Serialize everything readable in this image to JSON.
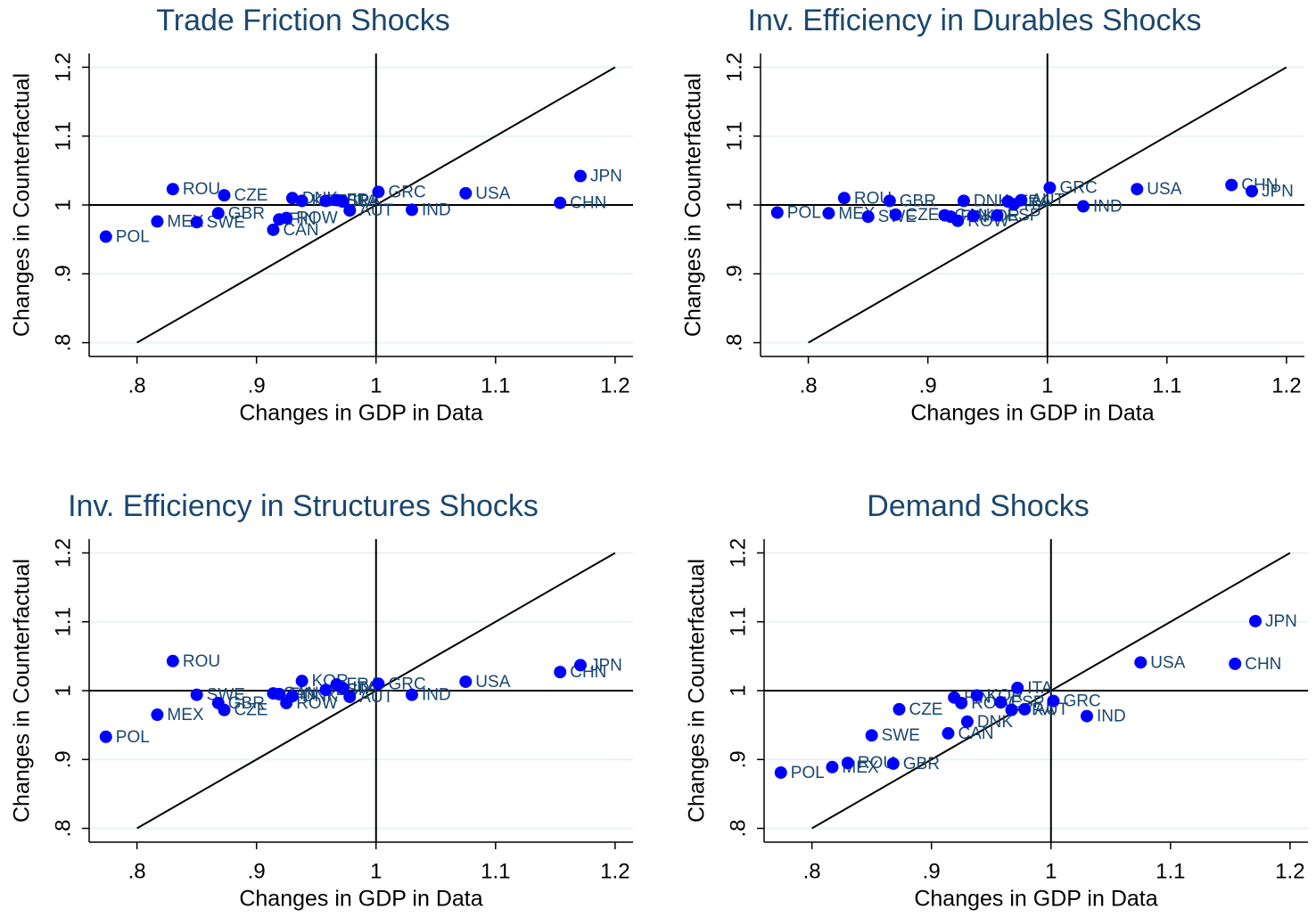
{
  "chart_data": [
    {
      "type": "scatter",
      "title": "Trade Friction Shocks",
      "xlabel": "Changes in GDP in Data",
      "ylabel": "Changes in Counterfactual",
      "point_labels": [
        "POL",
        "MEX",
        "ROU",
        "SWE",
        "GBR",
        "CZE",
        "CAN",
        "FIN",
        "ROW",
        "DNK",
        "KOR",
        "ESP",
        "FRA",
        "ITA",
        "AUT",
        "GRC",
        "IND",
        "USA",
        "CHN",
        "JPN"
      ],
      "x": [
        0.774,
        0.817,
        0.83,
        0.85,
        0.868,
        0.873,
        0.914,
        0.919,
        0.925,
        0.93,
        0.938,
        0.958,
        0.967,
        0.972,
        0.978,
        1.002,
        1.03,
        1.075,
        1.154,
        1.171
      ],
      "values": [
        0.954,
        0.976,
        1.023,
        0.975,
        0.988,
        1.014,
        0.964,
        0.979,
        0.981,
        1.01,
        1.006,
        1.006,
        1.007,
        1.005,
        0.992,
        1.019,
        0.993,
        1.017,
        1.003,
        1.042
      ],
      "color": "#0000ff",
      "hline": 1,
      "vline": 1,
      "diagonal": [
        0.8,
        1.2
      ],
      "xlim": [
        0.76,
        1.215
      ],
      "ylim": [
        0.78,
        1.22
      ],
      "xticks": [
        {
          "value": 0.8,
          "label": ".8"
        },
        {
          "value": 0.9,
          "label": ".9"
        },
        1,
        1.1,
        1.2
      ],
      "yticks": [
        {
          "value": 0.8,
          "label": ".8"
        },
        {
          "value": 0.9,
          "label": ".9"
        },
        1,
        1.1,
        1.2
      ],
      "grid": true
    },
    {
      "type": "scatter",
      "title": "Inv. Efficiency in Durables Shocks",
      "xlabel": "Changes in GDP in Data",
      "ylabel": "Changes in Counterfactual",
      "point_labels": [
        "POL",
        "MEX",
        "ROU",
        "SWE",
        "GBR",
        "CZE",
        "CAN",
        "FIN",
        "ROW",
        "DNK",
        "KOR",
        "ESP",
        "FRA",
        "ITA",
        "AUT",
        "GRC",
        "IND",
        "USA",
        "CHN",
        "JPN"
      ],
      "x": [
        0.774,
        0.817,
        0.83,
        0.85,
        0.868,
        0.873,
        0.914,
        0.919,
        0.925,
        0.93,
        0.938,
        0.958,
        0.967,
        0.972,
        0.978,
        1.002,
        1.03,
        1.075,
        1.154,
        1.171
      ],
      "values": [
        0.989,
        0.988,
        1.01,
        0.983,
        1.006,
        0.986,
        0.985,
        0.983,
        0.977,
        1.006,
        0.984,
        0.985,
        1.005,
        1.001,
        1.007,
        1.025,
        0.998,
        1.023,
        1.029,
        1.02
      ],
      "color": "#0000ff",
      "hline": 1,
      "vline": 1,
      "diagonal": [
        0.8,
        1.2
      ],
      "xlim": [
        0.76,
        1.215
      ],
      "ylim": [
        0.78,
        1.22
      ],
      "xticks": [
        {
          "value": 0.8,
          "label": ".8"
        },
        {
          "value": 0.9,
          "label": ".9"
        },
        1,
        1.1,
        1.2
      ],
      "yticks": [
        {
          "value": 0.8,
          "label": ".8"
        },
        {
          "value": 0.9,
          "label": ".9"
        },
        1,
        1.1,
        1.2
      ],
      "grid": true
    },
    {
      "type": "scatter",
      "title": "Inv. Efficiency in Structures Shocks",
      "xlabel": "Changes in GDP in Data",
      "ylabel": "Changes in Counterfactual",
      "point_labels": [
        "POL",
        "MEX",
        "ROU",
        "SWE",
        "GBR",
        "CZE",
        "CAN",
        "FIN",
        "ROW",
        "DNK",
        "KOR",
        "ESP",
        "FRA",
        "ITA",
        "AUT",
        "GRC",
        "IND",
        "USA",
        "CHN",
        "JPN"
      ],
      "x": [
        0.774,
        0.817,
        0.83,
        0.85,
        0.868,
        0.873,
        0.914,
        0.919,
        0.925,
        0.93,
        0.938,
        0.958,
        0.967,
        0.972,
        0.978,
        1.002,
        1.03,
        1.075,
        1.154,
        1.171
      ],
      "values": [
        0.933,
        0.965,
        1.043,
        0.994,
        0.982,
        0.972,
        0.996,
        0.995,
        0.982,
        0.992,
        1.014,
        1.001,
        1.009,
        1.004,
        0.991,
        1.01,
        0.994,
        1.013,
        1.027,
        1.037
      ],
      "color": "#0000ff",
      "hline": 1,
      "vline": 1,
      "diagonal": [
        0.8,
        1.2
      ],
      "xlim": [
        0.76,
        1.215
      ],
      "ylim": [
        0.78,
        1.22
      ],
      "xticks": [
        {
          "value": 0.8,
          "label": ".8"
        },
        {
          "value": 0.9,
          "label": ".9"
        },
        1,
        1.1,
        1.2
      ],
      "yticks": [
        {
          "value": 0.8,
          "label": ".8"
        },
        {
          "value": 0.9,
          "label": ".9"
        },
        1,
        1.1,
        1.2
      ],
      "grid": true
    },
    {
      "type": "scatter",
      "title": "Demand Shocks",
      "xlabel": "Changes in GDP in Data",
      "ylabel": "Changes in Counterfactual",
      "point_labels": [
        "POL",
        "MEX",
        "ROU",
        "SWE",
        "GBR",
        "CZE",
        "CAN",
        "FIN",
        "ROW",
        "DNK",
        "KOR",
        "ESP",
        "FRA",
        "ITA",
        "AUT",
        "GRC",
        "IND",
        "USA",
        "CHN",
        "JPN"
      ],
      "x": [
        0.774,
        0.817,
        0.83,
        0.85,
        0.868,
        0.873,
        0.914,
        0.919,
        0.925,
        0.93,
        0.938,
        0.958,
        0.967,
        0.972,
        0.978,
        1.002,
        1.03,
        1.075,
        1.154,
        1.171
      ],
      "values": [
        0.881,
        0.889,
        0.895,
        0.935,
        0.894,
        0.973,
        0.938,
        0.99,
        0.982,
        0.955,
        0.993,
        0.983,
        0.972,
        1.004,
        0.973,
        0.985,
        0.963,
        1.041,
        1.039,
        1.101
      ],
      "color": "#0000ff",
      "hline": 1,
      "vline": 1,
      "diagonal": [
        0.8,
        1.2
      ],
      "xlim": [
        0.76,
        1.215
      ],
      "ylim": [
        0.78,
        1.22
      ],
      "xticks": [
        {
          "value": 0.8,
          "label": ".8"
        },
        {
          "value": 0.9,
          "label": ".9"
        },
        1,
        1.1,
        1.2
      ],
      "yticks": [
        {
          "value": 0.8,
          "label": ".8"
        },
        {
          "value": 0.9,
          "label": ".9"
        },
        1,
        1.1,
        1.2
      ],
      "grid": true
    }
  ]
}
